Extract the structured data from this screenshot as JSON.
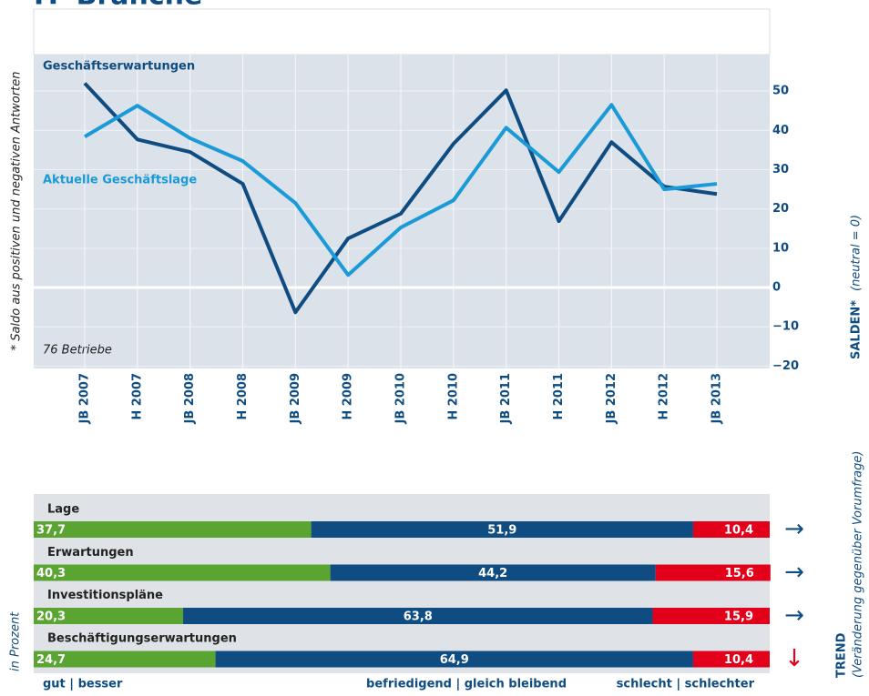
{
  "chart_data": [
    {
      "type": "line",
      "title": "IT–Branche",
      "categories": [
        "JB 2007",
        "H 2007",
        "JB 2008",
        "H 2008",
        "JB 2009",
        "H 2009",
        "JB 2010",
        "H 2010",
        "JB 2011",
        "H 2011",
        "JB 2012",
        "H 2012",
        "JB 2013"
      ],
      "series": [
        {
          "name": "Geschäftserwartungen",
          "color": "#0f4c81",
          "values": [
            52,
            37.7,
            34.5,
            26.4,
            -6.3,
            12.5,
            18.8,
            36.6,
            50.2,
            16.9,
            37,
            25.7,
            23.8
          ]
        },
        {
          "name": "Aktuelle Geschäftslage",
          "color": "#1a9ad6",
          "values": [
            38.4,
            46.3,
            38,
            32.2,
            21.5,
            3.2,
            15.3,
            22.2,
            40.7,
            29.4,
            46.5,
            25,
            26.4
          ]
        }
      ],
      "ylim": [
        -20.6,
        59.3
      ],
      "yticks": [
        {
          "value": -20,
          "label": "−20"
        },
        {
          "value": -10,
          "label": "−10"
        },
        0,
        10,
        20,
        30,
        40,
        50
      ],
      "grid": true,
      "ylabel": "SALDEN*",
      "ylabel_note": "(neutral = 0)",
      "footnote": "* Saldo aus positiven und negativen Antworten",
      "annotation": "76 Betriebe"
    },
    {
      "type": "stacked-hbar",
      "categories": [
        "Lage",
        "Erwartungen",
        "Investitionspläne",
        "Beschäftigungserwartungen"
      ],
      "xlim": [
        0,
        100
      ],
      "series": [
        {
          "name": "gut | besser",
          "color": "#5aa532",
          "values": [
            37.7,
            40.3,
            20.3,
            24.7
          ],
          "value_labels": [
            "37,7",
            "40,3",
            "20,3",
            "24,7"
          ]
        },
        {
          "name": "befriedigend | gleich bleibend",
          "color": "#0f4c81",
          "values": [
            51.9,
            44.2,
            63.8,
            64.9
          ],
          "value_labels": [
            "51,9",
            "44,2",
            "63,8",
            "64,9"
          ]
        },
        {
          "name": "schlecht | schlechter",
          "color": "#e2001a",
          "values": [
            10.4,
            15.6,
            15.9,
            10.4
          ],
          "value_labels": [
            "10,4",
            "15,6",
            "15,9",
            "10,4"
          ]
        }
      ],
      "trend": [
        "→",
        "→",
        "→",
        "↓"
      ],
      "trend_colors": [
        "#0f4c81",
        "#0f4c81",
        "#0f4c81",
        "#e2001a"
      ],
      "xlabel": "in Prozent",
      "trend_title": "TREND",
      "trend_note": "(Veränderung gegenüber Vorumfrage)"
    }
  ]
}
